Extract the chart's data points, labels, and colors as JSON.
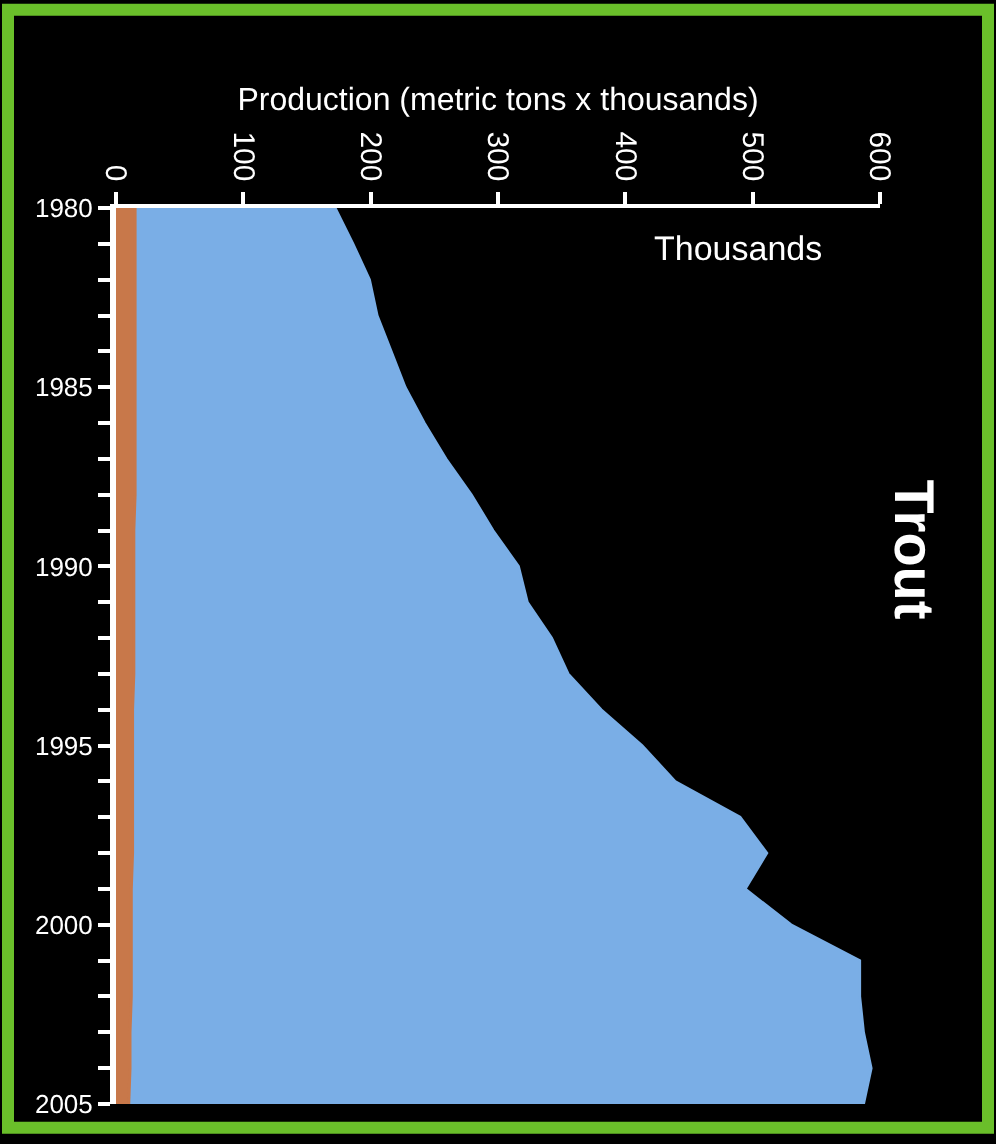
{
  "chart_data": {
    "type": "area",
    "orientation": "horizontal",
    "stacked": true,
    "title": "Trout",
    "xlabel": "Production (metric tons x thousands)",
    "annotations": [
      "Thousands"
    ],
    "x": [
      1980,
      1981,
      1982,
      1983,
      1984,
      1985,
      1986,
      1987,
      1988,
      1989,
      1990,
      1991,
      1992,
      1993,
      1994,
      1995,
      1996,
      1997,
      1998,
      1999,
      2000,
      2001,
      2002,
      2003,
      2004,
      2005
    ],
    "series": [
      {
        "color": "#c8784a",
        "values": [
          15,
          15,
          15,
          15,
          15,
          15,
          15,
          15,
          15,
          14,
          14,
          14,
          14,
          14,
          13,
          13,
          13,
          13,
          13,
          12,
          12,
          12,
          12,
          11,
          11,
          10
        ]
      },
      {
        "color": "#7aaee6",
        "values": [
          157,
          171,
          184,
          190,
          201,
          212,
          227,
          244,
          264,
          282,
          302,
          309,
          328,
          341,
          368,
          400,
          426,
          477,
          498,
          482,
          518,
          572,
          572,
          576,
          582,
          577
        ]
      }
    ],
    "xlim": [
      0,
      600
    ],
    "xticks": [
      0,
      100,
      200,
      300,
      400,
      500,
      600
    ],
    "ylim": [
      2005,
      1980
    ],
    "yticks": [
      1980,
      {
        "value": 1981,
        "label": null
      },
      {
        "value": 1982,
        "label": null
      },
      {
        "value": 1983,
        "label": null
      },
      {
        "value": 1984,
        "label": null
      },
      1985,
      {
        "value": 1986,
        "label": null
      },
      {
        "value": 1987,
        "label": null
      },
      {
        "value": 1988,
        "label": null
      },
      {
        "value": 1989,
        "label": null
      },
      1990,
      {
        "value": 1991,
        "label": null
      },
      {
        "value": 1992,
        "label": null
      },
      {
        "value": 1993,
        "label": null
      },
      {
        "value": 1994,
        "label": null
      },
      1995,
      {
        "value": 1996,
        "label": null
      },
      {
        "value": 1997,
        "label": null
      },
      {
        "value": 1998,
        "label": null
      },
      {
        "value": 1999,
        "label": null
      },
      2000,
      {
        "value": 2001,
        "label": null
      },
      {
        "value": 2002,
        "label": null
      },
      {
        "value": 2003,
        "label": null
      },
      {
        "value": 2004,
        "label": null
      },
      2005
    ],
    "grid": false,
    "legend": false
  }
}
